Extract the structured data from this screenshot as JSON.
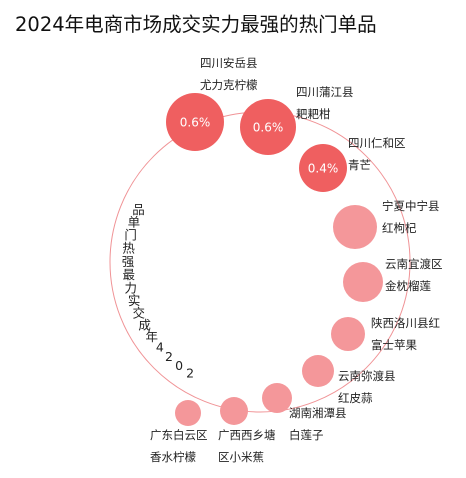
{
  "title": "2024年电商市场成交实力最强的热门单品",
  "chart_data": {
    "type": "bubble-arc",
    "title": "2024年电商市场成交实力最强的热门单品",
    "arc_label": "2024年成交实力最强热门单品",
    "highlight_color": "#ef5f60",
    "regular_color": "#f4979a",
    "arc_color": "#f09396",
    "items": [
      {
        "region": "四川安岳县",
        "product": "尤力克柠檬",
        "value": 0.6,
        "value_label": "0.6%",
        "highlight": true
      },
      {
        "region": "四川蒲江县",
        "product": "耙耙柑",
        "value": 0.6,
        "value_label": "0.6%",
        "highlight": true
      },
      {
        "region": "四川仁和区",
        "product": "青芒",
        "value": 0.4,
        "value_label": "0.4%",
        "highlight": true
      },
      {
        "region": "宁夏中宁县",
        "product": "红枸杞",
        "value": null,
        "value_label": "",
        "highlight": false
      },
      {
        "region": "云南宜渡区",
        "product": "金枕榴莲",
        "value": null,
        "value_label": "",
        "highlight": false
      },
      {
        "region": "陕西洛川县红",
        "product": "富士苹果",
        "value": null,
        "value_label": "",
        "highlight": false
      },
      {
        "region": "云南弥渡县",
        "product": "红皮蒜",
        "value": null,
        "value_label": "",
        "highlight": false
      },
      {
        "region": "湖南湘潭县",
        "product": "白莲子",
        "value": null,
        "value_label": "",
        "highlight": false
      },
      {
        "region": "广西西乡塘",
        "product": "区小米蕉",
        "value": null,
        "value_label": "",
        "highlight": false
      },
      {
        "region": "广东白云区",
        "product": "香水柠檬",
        "value": null,
        "value_label": "",
        "highlight": false
      }
    ]
  }
}
